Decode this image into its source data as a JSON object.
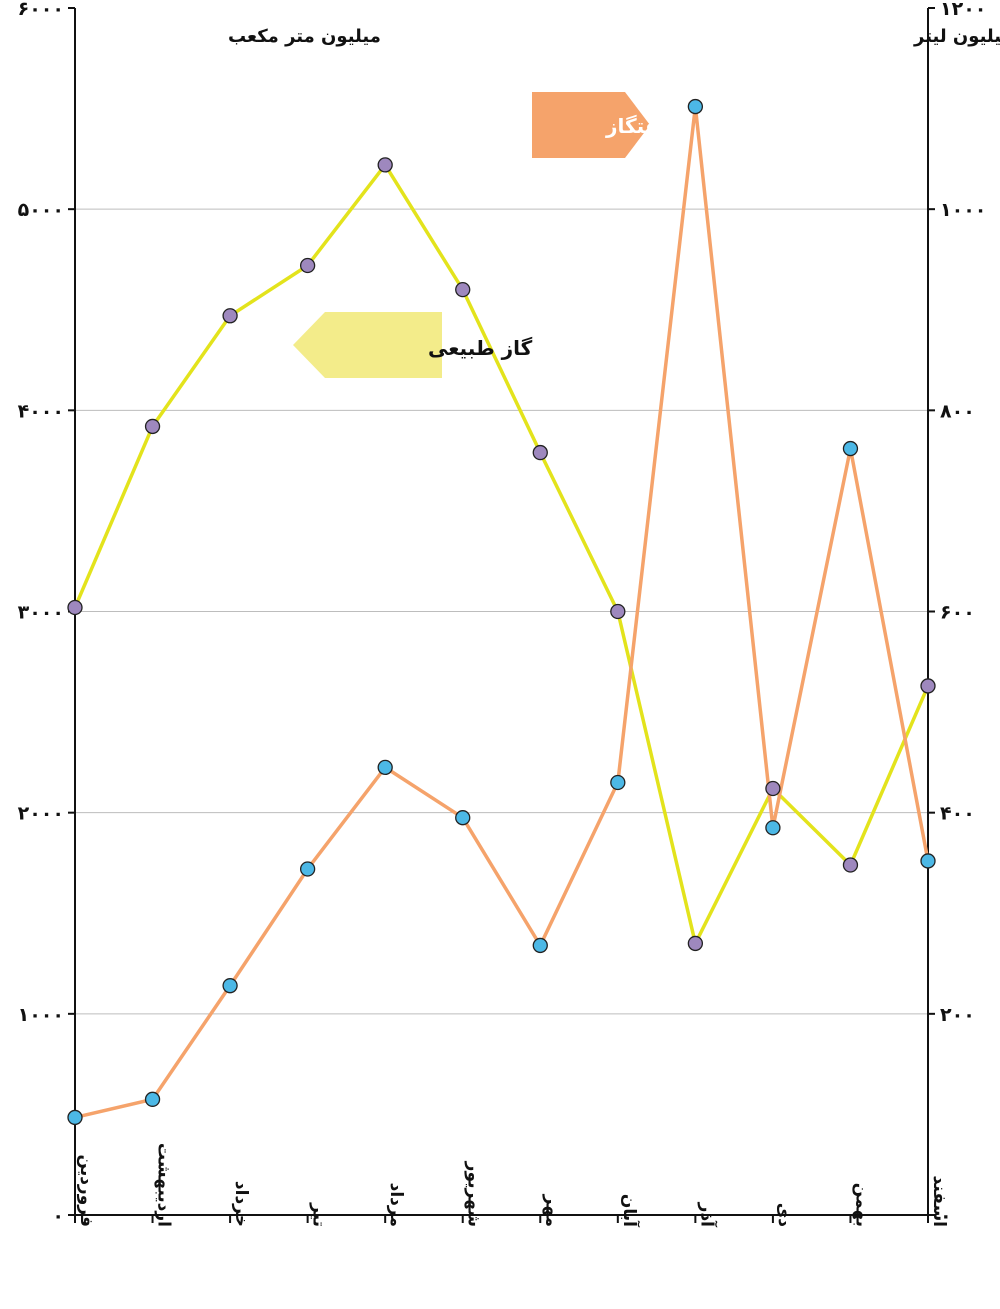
{
  "chart_data": {
    "type": "line",
    "categories": [
      "فروردین",
      "اردیبهشت",
      "خرداد",
      "تیر",
      "مرداد",
      "شهریور",
      "مهر",
      "آبان",
      "آذر",
      "دی",
      "بهمن",
      "اسفند"
    ],
    "left_axis": {
      "unit_label": "میلیون متر مکعب",
      "range": [
        0,
        6000
      ],
      "ticks": [
        0,
        1000,
        2000,
        3000,
        4000,
        5000,
        6000
      ],
      "tick_labels": [
        "۰",
        "۱۰۰۰",
        "۲۰۰۰",
        "۳۰۰۰",
        "۴۰۰۰",
        "۵۰۰۰",
        "۶۰۰۰"
      ]
    },
    "right_axis": {
      "unit_label": "میلیون لیتر",
      "range": [
        0,
        1200
      ],
      "ticks": [
        0,
        200,
        400,
        600,
        800,
        1000,
        1200
      ],
      "tick_labels": [
        "۰",
        "۲۰۰",
        "۴۰۰",
        "۶۰۰",
        "۸۰۰",
        "۱۰۰۰",
        "۱۲۰۰"
      ]
    },
    "grid": true,
    "series": [
      {
        "name": "گاز طبیعی",
        "axis": "left",
        "color": "#e3e31c",
        "marker_color": "#9e88be",
        "values": [
          3020,
          3920,
          4470,
          4720,
          5220,
          4600,
          3790,
          3000,
          1350,
          2120,
          1740,
          2630
        ]
      },
      {
        "name": "نفتگاز",
        "axis": "right",
        "color": "#f5a36b",
        "marker_color": "#4cb8e6",
        "values": [
          97,
          115,
          228,
          344,
          445,
          395,
          268,
          430,
          1102,
          385,
          762,
          352
        ]
      }
    ]
  }
}
